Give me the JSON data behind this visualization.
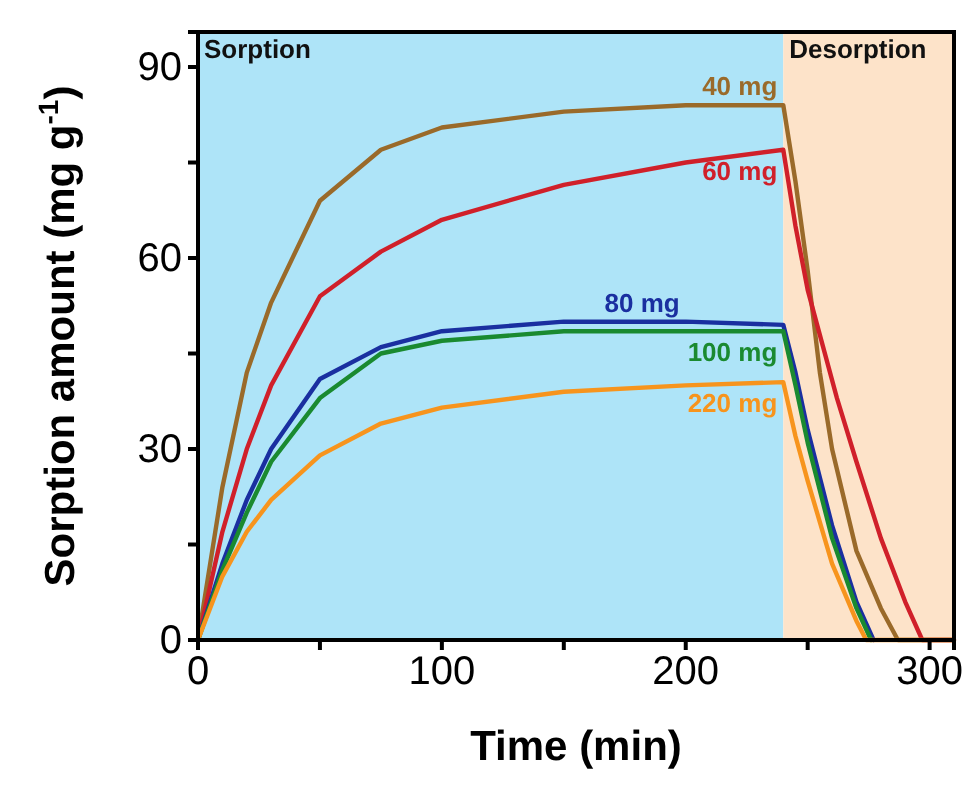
{
  "chart_data": {
    "type": "line",
    "xlabel": "Time (min)",
    "ylabel": "Sorption amount (mg g$^{-1}$)",
    "xlim": [
      0,
      310
    ],
    "xticks": [
      0,
      {
        "value": 50,
        "label": null
      },
      100,
      {
        "value": 150,
        "label": null
      },
      200,
      {
        "value": 250,
        "label": null
      },
      300
    ],
    "ylim": [
      0,
      95.5
    ],
    "yticks": [
      0,
      {
        "value": 15,
        "label": null
      },
      30,
      {
        "value": 45,
        "label": null
      },
      60,
      {
        "value": 75,
        "label": null
      },
      90
    ],
    "grid": false,
    "legend": false,
    "marker": "none",
    "line_style": "solid",
    "bands": [
      {
        "axis": "x",
        "from": 0,
        "to": 240,
        "label": "Sorption",
        "color": "#aee4f8"
      },
      {
        "axis": "x",
        "from": 240,
        "to": 310,
        "label": "Desorption",
        "color": "#fde3c9"
      }
    ],
    "series": [
      {
        "name": "40 mg",
        "color": "#9a6a2a",
        "x": [
          0,
          10,
          20,
          30,
          50,
          75,
          100,
          150,
          200,
          240,
          245,
          250,
          255,
          260,
          270,
          280,
          287,
          310
        ],
        "values": [
          0,
          24,
          42,
          53,
          69,
          77,
          80.5,
          83,
          84,
          84,
          72,
          58,
          42,
          30,
          14,
          5,
          0,
          0
        ]
      },
      {
        "name": "60 mg",
        "color": "#d0202a",
        "x": [
          0,
          10,
          20,
          30,
          50,
          75,
          100,
          150,
          200,
          240,
          245,
          250,
          262,
          270,
          280,
          290,
          297,
          310
        ],
        "values": [
          0,
          17,
          30,
          40,
          54,
          61,
          66,
          71.5,
          75,
          77,
          65,
          55,
          38,
          28,
          16,
          6,
          0,
          0
        ]
      },
      {
        "name": "80 mg",
        "color": "#1a2fa0",
        "x": [
          0,
          10,
          20,
          30,
          50,
          75,
          100,
          150,
          200,
          240,
          245,
          250,
          260,
          270,
          277
        ],
        "values": [
          0,
          12,
          22,
          30,
          41,
          46,
          48.5,
          50,
          50,
          49.5,
          42,
          33,
          18,
          6,
          0
        ]
      },
      {
        "name": "100 mg",
        "color": "#1a8a30",
        "x": [
          0,
          10,
          20,
          30,
          50,
          75,
          100,
          150,
          200,
          240,
          245,
          250,
          260,
          270,
          276
        ],
        "values": [
          0,
          11,
          20,
          28,
          38,
          45,
          47,
          48.5,
          48.5,
          48.5,
          40,
          31,
          16,
          5,
          0
        ]
      },
      {
        "name": "220 mg",
        "color": "#f7941d",
        "x": [
          0,
          10,
          20,
          30,
          50,
          75,
          100,
          150,
          200,
          240,
          245,
          250,
          260,
          270,
          274,
          310
        ],
        "values": [
          0,
          10,
          17,
          22,
          29,
          34,
          36.5,
          39,
          40,
          40.5,
          32,
          25,
          12,
          3,
          0,
          0
        ]
      }
    ]
  }
}
